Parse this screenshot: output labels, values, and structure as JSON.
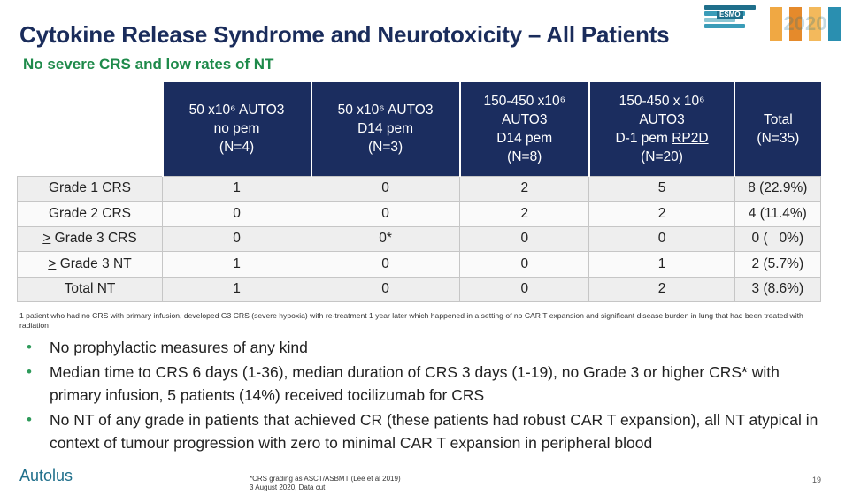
{
  "slide": {
    "title": "Cytokine Release Syndrome and Neurotoxicity – All Patients",
    "subtitle": "No severe CRS and low rates of NT",
    "logo_small_text": "ESMO",
    "logo_big_text": "2020",
    "page_number": "19"
  },
  "table": {
    "columns": [
      {
        "lines": [
          "50 x10⁶ AUTO3",
          "no pem",
          "(N=4)"
        ]
      },
      {
        "lines": [
          "50 x10⁶ AUTO3",
          "D14 pem",
          "(N=3)"
        ]
      },
      {
        "lines": [
          "150-450 x10⁶",
          "AUTO3",
          "D14 pem",
          "(N=8)"
        ]
      },
      {
        "lines": [
          "150-450 x 10⁶",
          "AUTO3",
          "D-1 pem",
          "RP2D",
          "(N=20)"
        ]
      },
      {
        "lines": [
          "Total",
          "(N=35)"
        ]
      }
    ],
    "rows": [
      {
        "label": "Grade 1 CRS",
        "cells": [
          "1",
          "0",
          "2",
          "5",
          "8 (22.9%)"
        ]
      },
      {
        "label": "Grade 2 CRS",
        "cells": [
          "0",
          "0",
          "2",
          "2",
          "4 (11.4%)"
        ]
      },
      {
        "label_prefix": ">",
        "label": "Grade 3 CRS",
        "cells": [
          "0",
          "0*",
          "0",
          "0",
          "0 (   0%)"
        ]
      },
      {
        "label_prefix": ">",
        "label": "Grade 3 NT",
        "cells": [
          "1",
          "0",
          "0",
          "1",
          "2 (5.7%)"
        ]
      },
      {
        "label": "Total NT",
        "cells": [
          "1",
          "0",
          "0",
          "2",
          "3 (8.6%)"
        ]
      }
    ]
  },
  "footnote": "1 patient who had no CRS with primary infusion, developed G3 CRS (severe hypoxia) with re-treatment 1 year later which happened in a setting of no CAR T expansion and significant disease burden in lung that had been treated with radiation",
  "bullets": [
    "No prophylactic measures of any kind",
    "Median time to CRS 6 days (1-36), median duration of CRS 3 days (1-19), no Grade 3 or higher CRS* with primary infusion, 5 patients (14%) received tocilizumab for CRS",
    "No NT of any grade in patients that achieved CR (these patients had robust CAR T expansion), all NT atypical in context of tumour progression with zero to minimal CAR T expansion in peripheral blood"
  ],
  "footer": {
    "company": "Autolus",
    "note_line1": "*CRS grading as ASCT/ASBMT (Lee et al 2019)",
    "note_line2": "3 August 2020, Data cut"
  },
  "colors": {
    "title": "#1a2c5b",
    "subtitle": "#1e8a4a",
    "header_bg": "#1b2d5f",
    "bullet": "#2e9a5a",
    "brand": "#1f6f8b"
  }
}
